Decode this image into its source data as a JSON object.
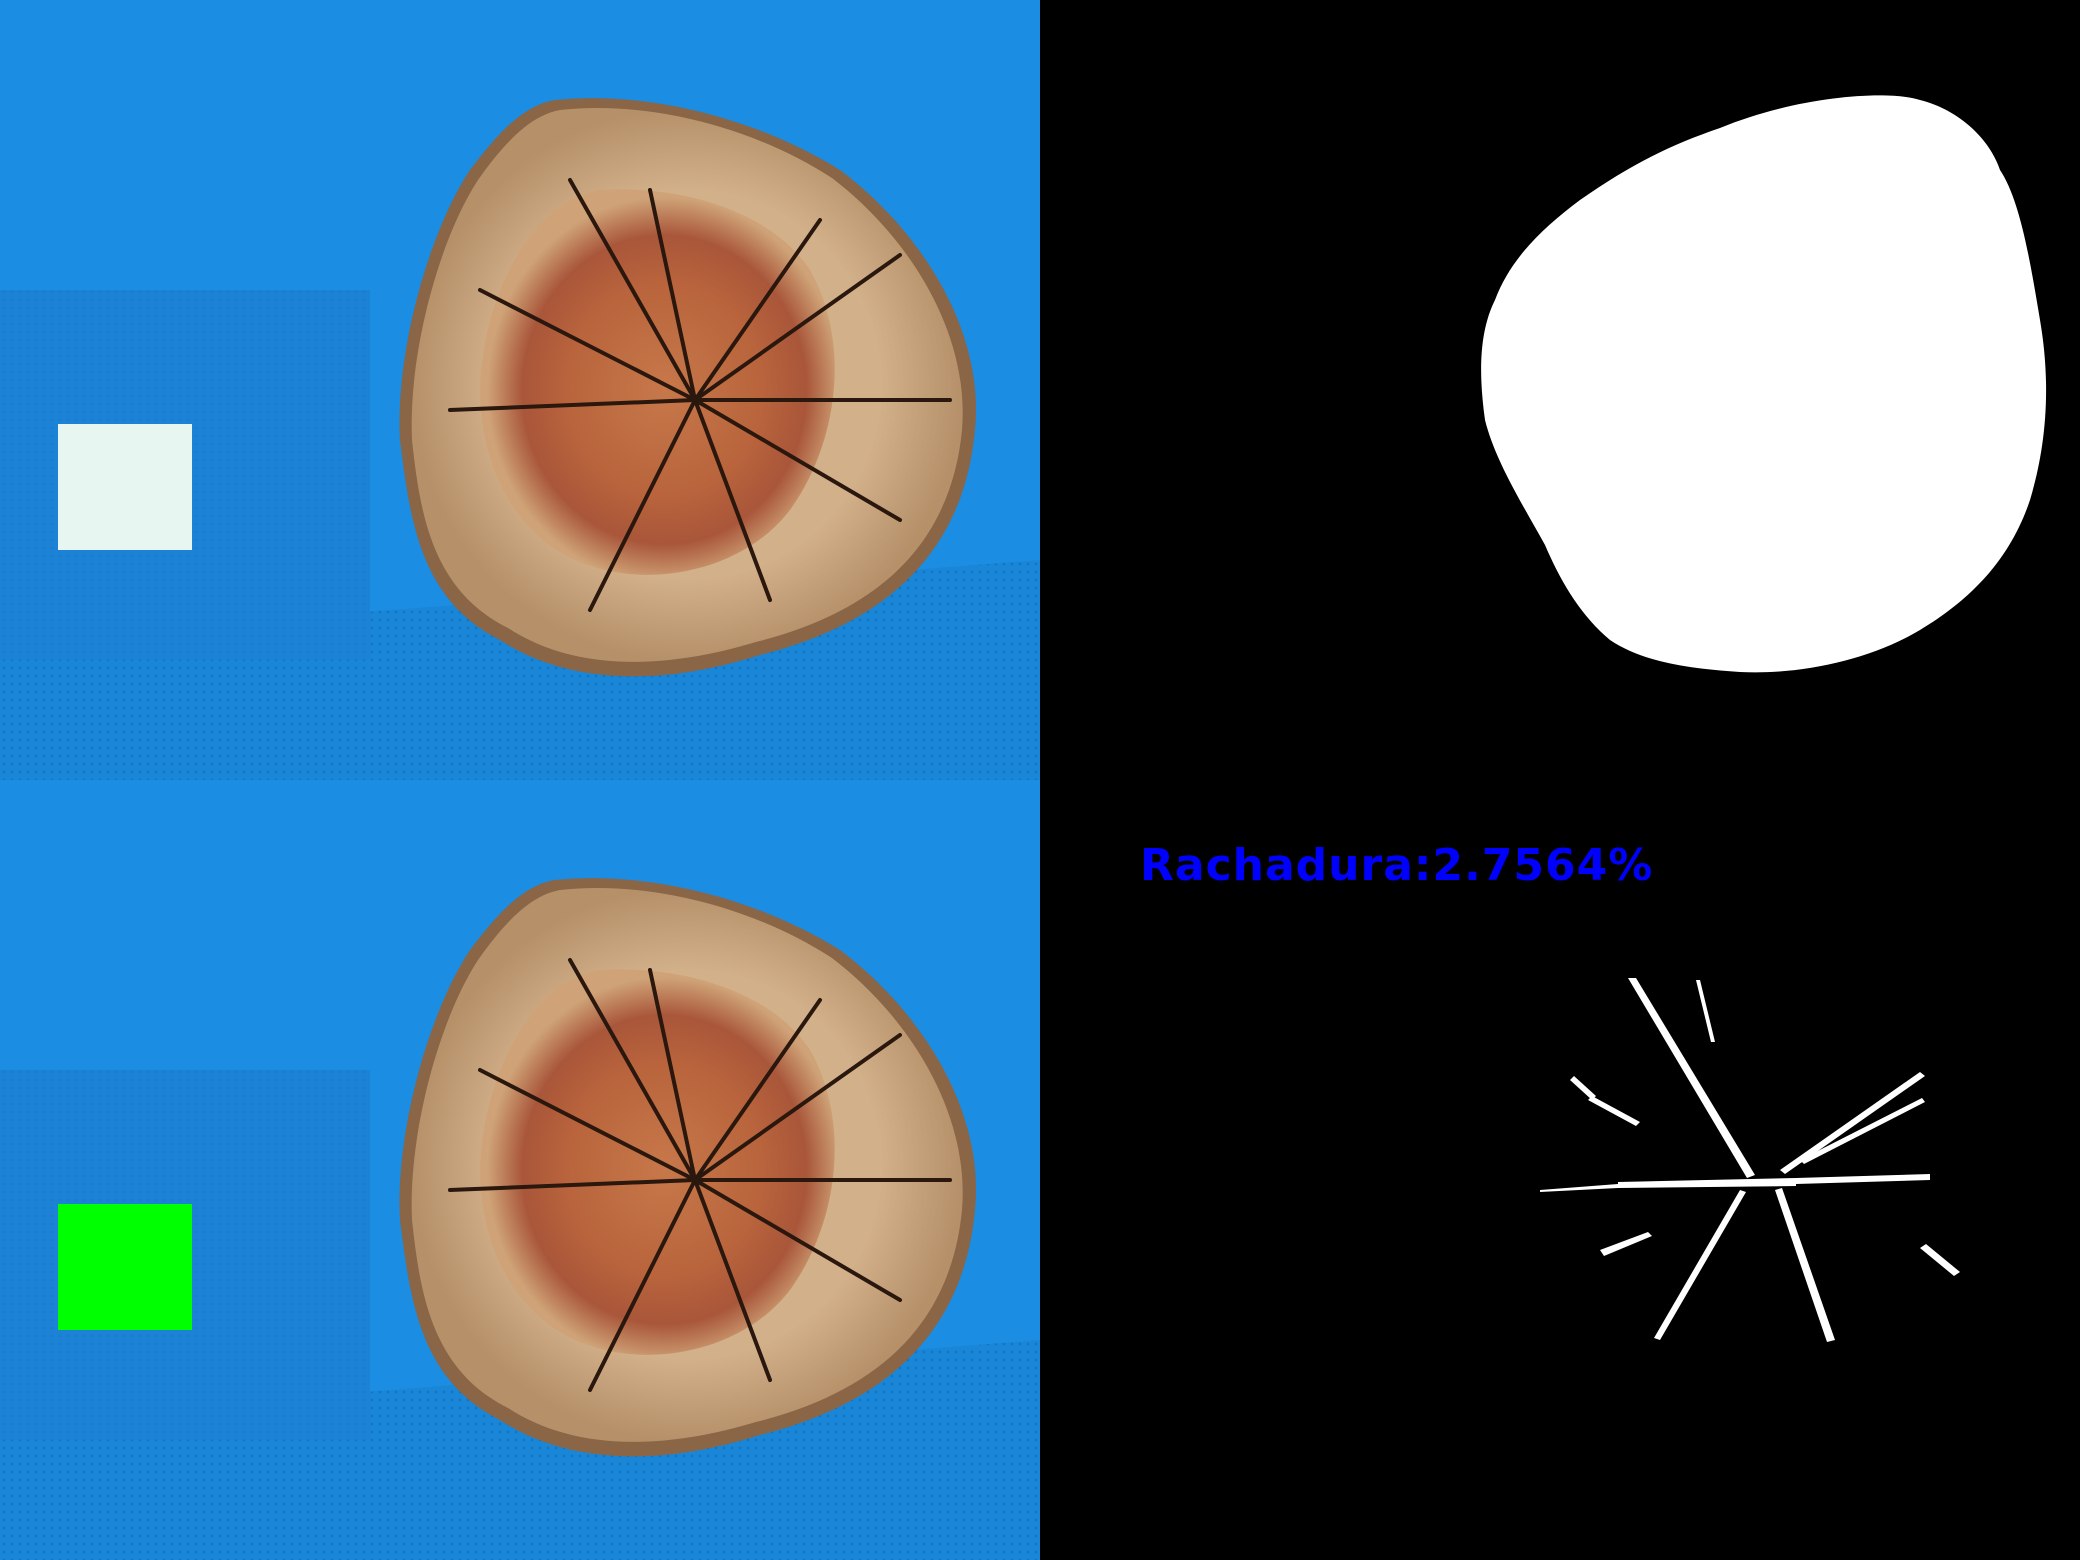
{
  "colors": {
    "background_blue": "#1a8be0",
    "box_blue": "#1c7fd3",
    "wood_light": "#c8a27a",
    "wood_heart": "#b5673d",
    "white_patch": "#e8f6f2",
    "green_patch": "#00ff00",
    "mask_white": "#ffffff",
    "mask_black": "#000000",
    "label_blue": "#0000ff"
  },
  "result": {
    "crack_label": "Rachadura:2.7564%"
  }
}
